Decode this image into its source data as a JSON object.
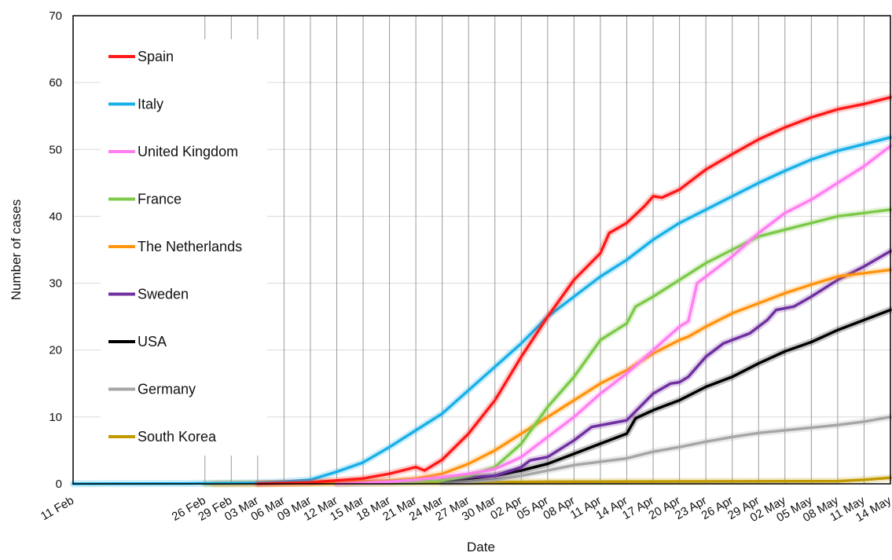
{
  "chart_data": {
    "type": "line",
    "title": "",
    "xlabel": "Date",
    "ylabel": "Number of cases",
    "ylim": [
      0,
      70
    ],
    "yticks": [
      0,
      10,
      20,
      30,
      40,
      50,
      60,
      70
    ],
    "xlim": [
      "2020-02-11",
      "2020-05-14"
    ],
    "x_tick_dates": [
      "2020-02-11",
      "2020-02-26",
      "2020-02-29",
      "2020-03-03",
      "2020-03-06",
      "2020-03-09",
      "2020-03-12",
      "2020-03-15",
      "2020-03-18",
      "2020-03-21",
      "2020-03-24",
      "2020-03-27",
      "2020-03-30",
      "2020-04-02",
      "2020-04-05",
      "2020-04-08",
      "2020-04-11",
      "2020-04-14",
      "2020-04-17",
      "2020-04-20",
      "2020-04-23",
      "2020-04-26",
      "2020-04-29",
      "2020-05-02",
      "2020-05-05",
      "2020-05-08",
      "2020-05-11",
      "2020-05-14"
    ],
    "x_tick_labels": [
      "11 Feb",
      "26 Feb",
      "29 Feb",
      "03 Mar",
      "06 Mar",
      "09 Mar",
      "12 Mar",
      "15 Mar",
      "18 Mar",
      "21 Mar",
      "24 Mar",
      "27 Mar",
      "30 Mar",
      "02 Apr",
      "05 Apr",
      "08 Apr",
      "11 Apr",
      "14 Apr",
      "17 Apr",
      "20 Apr",
      "23 Apr",
      "26 Apr",
      "29 Apr",
      "02 May",
      "05 May",
      "08 May",
      "11 May",
      "14 May"
    ],
    "vertical_grid": true,
    "horizontal_grid": true,
    "legend_position": "top-left",
    "series": [
      {
        "name": "Spain",
        "color": "#ff1a1a",
        "points": [
          [
            "2020-03-03",
            0
          ],
          [
            "2020-03-09",
            0.2
          ],
          [
            "2020-03-15",
            0.8
          ],
          [
            "2020-03-18",
            1.5
          ],
          [
            "2020-03-21",
            2.5
          ],
          [
            "2020-03-22",
            2.0
          ],
          [
            "2020-03-24",
            3.6
          ],
          [
            "2020-03-27",
            7.5
          ],
          [
            "2020-03-30",
            12.5
          ],
          [
            "2020-04-02",
            19.0
          ],
          [
            "2020-04-05",
            25.0
          ],
          [
            "2020-04-08",
            30.5
          ],
          [
            "2020-04-11",
            34.5
          ],
          [
            "2020-04-12",
            37.5
          ],
          [
            "2020-04-14",
            39.0
          ],
          [
            "2020-04-16",
            41.5
          ],
          [
            "2020-04-17",
            43.0
          ],
          [
            "2020-04-18",
            42.8
          ],
          [
            "2020-04-20",
            44.0
          ],
          [
            "2020-04-23",
            47.0
          ],
          [
            "2020-04-26",
            49.3
          ],
          [
            "2020-04-29",
            51.5
          ],
          [
            "2020-05-02",
            53.3
          ],
          [
            "2020-05-05",
            54.8
          ],
          [
            "2020-05-08",
            56.0
          ],
          [
            "2020-05-11",
            56.8
          ],
          [
            "2020-05-14",
            57.8
          ]
        ]
      },
      {
        "name": "Italy",
        "color": "#1ab0e8",
        "points": [
          [
            "2020-02-11",
            0
          ],
          [
            "2020-02-24",
            0.05
          ],
          [
            "2020-03-03",
            0.15
          ],
          [
            "2020-03-06",
            0.3
          ],
          [
            "2020-03-09",
            0.6
          ],
          [
            "2020-03-12",
            1.8
          ],
          [
            "2020-03-15",
            3.2
          ],
          [
            "2020-03-18",
            5.5
          ],
          [
            "2020-03-21",
            8.0
          ],
          [
            "2020-03-24",
            10.5
          ],
          [
            "2020-03-27",
            14.0
          ],
          [
            "2020-03-30",
            17.5
          ],
          [
            "2020-04-02",
            21.0
          ],
          [
            "2020-04-05",
            25.0
          ],
          [
            "2020-04-08",
            28.0
          ],
          [
            "2020-04-11",
            31.0
          ],
          [
            "2020-04-14",
            33.5
          ],
          [
            "2020-04-17",
            36.5
          ],
          [
            "2020-04-20",
            39.0
          ],
          [
            "2020-04-23",
            41.0
          ],
          [
            "2020-04-26",
            43.0
          ],
          [
            "2020-04-29",
            45.0
          ],
          [
            "2020-05-02",
            46.8
          ],
          [
            "2020-05-05",
            48.5
          ],
          [
            "2020-05-08",
            49.8
          ],
          [
            "2020-05-11",
            50.8
          ],
          [
            "2020-05-14",
            51.8
          ]
        ]
      },
      {
        "name": "United Kingdom",
        "color": "#ff7ef0",
        "points": [
          [
            "2020-03-12",
            0
          ],
          [
            "2020-03-18",
            0.3
          ],
          [
            "2020-03-21",
            0.6
          ],
          [
            "2020-03-24",
            1.0
          ],
          [
            "2020-03-27",
            1.5
          ],
          [
            "2020-03-30",
            2.2
          ],
          [
            "2020-04-02",
            4.0
          ],
          [
            "2020-04-05",
            7.0
          ],
          [
            "2020-04-08",
            10.0
          ],
          [
            "2020-04-11",
            13.5
          ],
          [
            "2020-04-14",
            16.5
          ],
          [
            "2020-04-17",
            20.0
          ],
          [
            "2020-04-20",
            23.5
          ],
          [
            "2020-04-21",
            24.3
          ],
          [
            "2020-04-22",
            30.0
          ],
          [
            "2020-04-23",
            31.0
          ],
          [
            "2020-04-26",
            34.0
          ],
          [
            "2020-04-29",
            37.5
          ],
          [
            "2020-05-02",
            40.5
          ],
          [
            "2020-05-05",
            42.5
          ],
          [
            "2020-05-08",
            45.0
          ],
          [
            "2020-05-11",
            47.5
          ],
          [
            "2020-05-14",
            50.5
          ]
        ]
      },
      {
        "name": "France",
        "color": "#7dca4a",
        "points": [
          [
            "2020-03-12",
            0
          ],
          [
            "2020-03-18",
            0.2
          ],
          [
            "2020-03-24",
            0.5
          ],
          [
            "2020-03-27",
            1.2
          ],
          [
            "2020-03-30",
            2.5
          ],
          [
            "2020-04-02",
            6.0
          ],
          [
            "2020-04-05",
            11.5
          ],
          [
            "2020-04-08",
            16.0
          ],
          [
            "2020-04-11",
            21.5
          ],
          [
            "2020-04-14",
            24.0
          ],
          [
            "2020-04-15",
            26.5
          ],
          [
            "2020-04-17",
            28.0
          ],
          [
            "2020-04-20",
            30.5
          ],
          [
            "2020-04-23",
            33.0
          ],
          [
            "2020-04-26",
            35.0
          ],
          [
            "2020-04-29",
            37.0
          ],
          [
            "2020-05-02",
            38.0
          ],
          [
            "2020-05-05",
            39.0
          ],
          [
            "2020-05-08",
            40.0
          ],
          [
            "2020-05-11",
            40.5
          ],
          [
            "2020-05-14",
            41.0
          ]
        ]
      },
      {
        "name": "The Netherlands",
        "color": "#ff9410",
        "points": [
          [
            "2020-02-27",
            0
          ],
          [
            "2020-03-06",
            0.05
          ],
          [
            "2020-03-12",
            0.2
          ],
          [
            "2020-03-18",
            0.5
          ],
          [
            "2020-03-21",
            0.8
          ],
          [
            "2020-03-24",
            1.5
          ],
          [
            "2020-03-27",
            3.0
          ],
          [
            "2020-03-30",
            5.0
          ],
          [
            "2020-04-02",
            7.5
          ],
          [
            "2020-04-05",
            10.0
          ],
          [
            "2020-04-08",
            12.5
          ],
          [
            "2020-04-11",
            15.0
          ],
          [
            "2020-04-14",
            17.0
          ],
          [
            "2020-04-17",
            19.5
          ],
          [
            "2020-04-20",
            21.5
          ],
          [
            "2020-04-21",
            22.0
          ],
          [
            "2020-04-23",
            23.5
          ],
          [
            "2020-04-26",
            25.5
          ],
          [
            "2020-04-29",
            27.0
          ],
          [
            "2020-05-02",
            28.5
          ],
          [
            "2020-05-05",
            29.8
          ],
          [
            "2020-05-08",
            31.0
          ],
          [
            "2020-05-11",
            31.5
          ],
          [
            "2020-05-14",
            32.0
          ]
        ]
      },
      {
        "name": "Sweden",
        "color": "#7030a0",
        "points": [
          [
            "2020-03-24",
            0.5
          ],
          [
            "2020-03-27",
            1.0
          ],
          [
            "2020-03-30",
            1.2
          ],
          [
            "2020-04-02",
            2.5
          ],
          [
            "2020-04-03",
            3.5
          ],
          [
            "2020-04-05",
            4.0
          ],
          [
            "2020-04-08",
            6.5
          ],
          [
            "2020-04-10",
            8.5
          ],
          [
            "2020-04-12",
            9.0
          ],
          [
            "2020-04-14",
            9.5
          ],
          [
            "2020-04-17",
            13.5
          ],
          [
            "2020-04-19",
            15.0
          ],
          [
            "2020-04-20",
            15.2
          ],
          [
            "2020-04-21",
            16.0
          ],
          [
            "2020-04-23",
            19.0
          ],
          [
            "2020-04-25",
            21.0
          ],
          [
            "2020-04-26",
            21.5
          ],
          [
            "2020-04-28",
            22.5
          ],
          [
            "2020-04-30",
            24.5
          ],
          [
            "2020-05-01",
            26.0
          ],
          [
            "2020-05-03",
            26.5
          ],
          [
            "2020-05-05",
            28.0
          ],
          [
            "2020-05-08",
            30.5
          ],
          [
            "2020-05-11",
            32.5
          ],
          [
            "2020-05-14",
            34.8
          ]
        ]
      },
      {
        "name": "USA",
        "color": "#000000",
        "points": [
          [
            "2020-03-24",
            0.5
          ],
          [
            "2020-03-27",
            0.8
          ],
          [
            "2020-03-30",
            1.2
          ],
          [
            "2020-04-02",
            2.0
          ],
          [
            "2020-04-05",
            3.0
          ],
          [
            "2020-04-08",
            4.5
          ],
          [
            "2020-04-11",
            6.0
          ],
          [
            "2020-04-14",
            7.5
          ],
          [
            "2020-04-15",
            9.8
          ],
          [
            "2020-04-17",
            11.0
          ],
          [
            "2020-04-20",
            12.5
          ],
          [
            "2020-04-23",
            14.5
          ],
          [
            "2020-04-26",
            16.0
          ],
          [
            "2020-04-29",
            18.0
          ],
          [
            "2020-05-02",
            19.8
          ],
          [
            "2020-05-05",
            21.2
          ],
          [
            "2020-05-08",
            23.0
          ],
          [
            "2020-05-11",
            24.5
          ],
          [
            "2020-05-14",
            26.0
          ]
        ]
      },
      {
        "name": "Germany",
        "color": "#a6a6a6",
        "points": [
          [
            "2020-03-24",
            0.1
          ],
          [
            "2020-03-27",
            0.3
          ],
          [
            "2020-03-30",
            0.6
          ],
          [
            "2020-04-02",
            1.2
          ],
          [
            "2020-04-05",
            2.0
          ],
          [
            "2020-04-08",
            2.8
          ],
          [
            "2020-04-11",
            3.3
          ],
          [
            "2020-04-14",
            3.8
          ],
          [
            "2020-04-17",
            4.8
          ],
          [
            "2020-04-20",
            5.5
          ],
          [
            "2020-04-23",
            6.3
          ],
          [
            "2020-04-26",
            7.0
          ],
          [
            "2020-04-29",
            7.6
          ],
          [
            "2020-05-02",
            8.0
          ],
          [
            "2020-05-05",
            8.4
          ],
          [
            "2020-05-08",
            8.8
          ],
          [
            "2020-05-11",
            9.3
          ],
          [
            "2020-05-14",
            10.0
          ]
        ]
      },
      {
        "name": "South Korea",
        "color": "#c09a00",
        "points": [
          [
            "2020-02-26",
            0
          ],
          [
            "2020-03-18",
            0.1
          ],
          [
            "2020-04-05",
            0.3
          ],
          [
            "2020-05-08",
            0.4
          ],
          [
            "2020-05-11",
            0.6
          ],
          [
            "2020-05-14",
            0.9
          ]
        ]
      }
    ]
  }
}
